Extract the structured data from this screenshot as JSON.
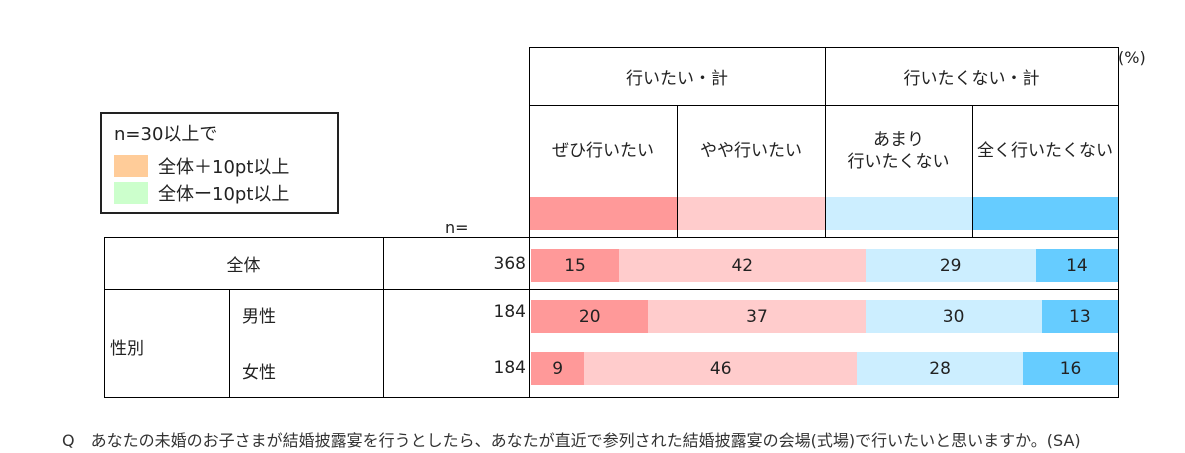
{
  "unit_label": "(%)",
  "n_label": "n=",
  "legend": {
    "title": "n=30以上で",
    "items": [
      {
        "label": "全体＋10pt以上",
        "color": "#ffcc99"
      },
      {
        "label": "全体ー10pt以上",
        "color": "#ccffcc"
      }
    ]
  },
  "header": {
    "group1": "行いたい・計",
    "group2": "行いたくない・計",
    "cat1": "ぜひ行いたい",
    "cat2": "やや行いたい",
    "cat3_line1": "あまり",
    "cat3_line2": "行いたくない",
    "cat4": "全く行いたくない"
  },
  "rows": {
    "total_label": "全体",
    "gender_label": "性別",
    "male_label": "男性",
    "female_label": "女性"
  },
  "footnote": "Q　あなたの未婚のお子さまが結婚披露宴を行うとしたら、あなたが直近で参列された結婚披露宴の会場(式場)で行いたいと思いますか。(SA)",
  "chart_data": {
    "type": "bar",
    "stacked": true,
    "orientation": "horizontal",
    "categories": [
      "全体",
      "男性",
      "女性"
    ],
    "n": [
      368,
      184,
      184
    ],
    "series": [
      {
        "name": "ぜひ行いたい",
        "values": [
          15,
          20,
          9
        ],
        "color": "#ff9999"
      },
      {
        "name": "やや行いたい",
        "values": [
          42,
          37,
          46
        ],
        "color": "#ffcccc"
      },
      {
        "name": "あまり行いたくない",
        "values": [
          29,
          30,
          28
        ],
        "color": "#cceeff"
      },
      {
        "name": "全く行いたくない",
        "values": [
          14,
          13,
          16
        ],
        "color": "#66ccff"
      }
    ]
  }
}
